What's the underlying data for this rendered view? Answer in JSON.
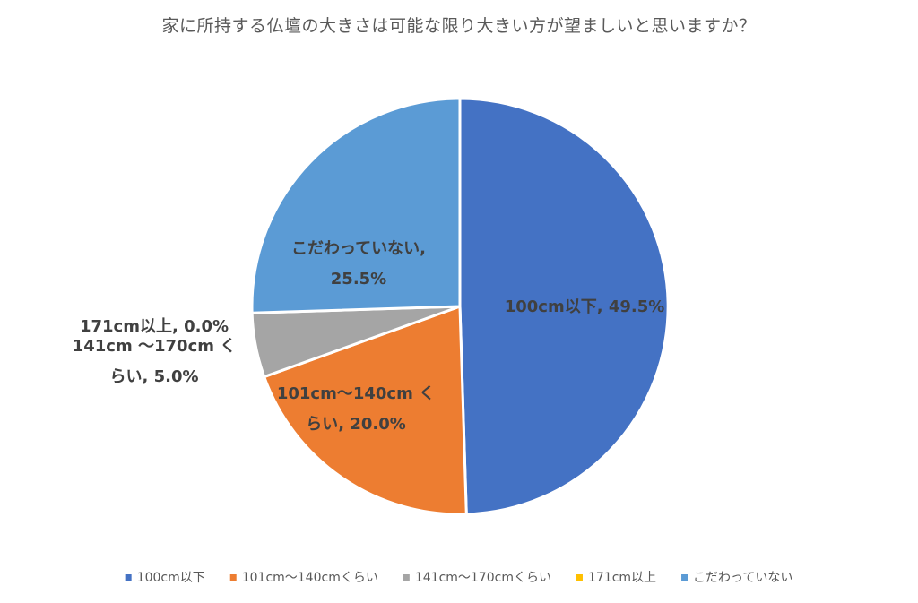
{
  "chart_data": {
    "type": "pie",
    "title": "家に所持する仏壇の大きさは可能な限り大きい方が望ましいと思いますか？",
    "legend_position": "bottom",
    "start_angle_deg": 0,
    "direction": "clockwise",
    "slices": [
      {
        "name": "100cm以下",
        "value": 49.5,
        "color": "#4472C4",
        "label_lines": [
          "100cm以下, 49.5%"
        ]
      },
      {
        "name": "101cm〜140cmくらい",
        "value": 20.0,
        "color": "#ED7D31",
        "label_lines": [
          "101cm〜140cm く",
          "らい, 20.0%"
        ]
      },
      {
        "name": "141cm〜170cmくらい",
        "value": 5.0,
        "color": "#A5A5A5",
        "label_lines": [
          "141cm 〜170cm く",
          "らい, 5.0%"
        ]
      },
      {
        "name": "171cm以上",
        "value": 0.0,
        "color": "#FFC000",
        "label_lines": [
          "171cm以上, 0.0%"
        ]
      },
      {
        "name": "こだわっていない",
        "value": 25.5,
        "color": "#5B9BD5",
        "label_lines": [
          "こだわっていない,",
          "25.5%"
        ]
      }
    ]
  }
}
